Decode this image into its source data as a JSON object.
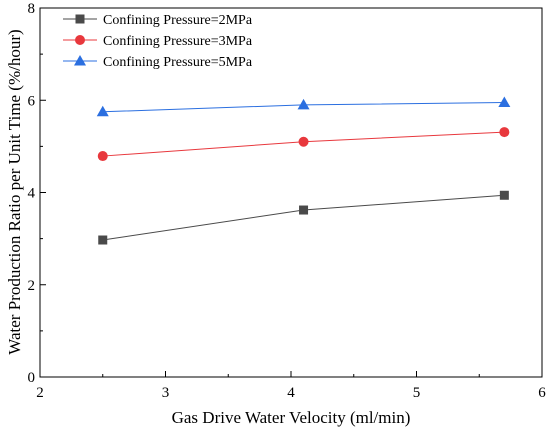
{
  "chart_data": {
    "type": "line",
    "xlabel": "Gas Drive Water Velocity (ml/min)",
    "ylabel": "Water Production Ratio per Unit Time (%/hour)",
    "xlim": [
      2,
      6
    ],
    "ylim": [
      0,
      8
    ],
    "xticks": [
      2,
      3,
      4,
      5,
      6
    ],
    "yticks": [
      0,
      2,
      4,
      6,
      8
    ],
    "grid": false,
    "legend_position": "top-left",
    "x": [
      2.5,
      4.1,
      5.7
    ],
    "series": [
      {
        "name": "Confining Pressure=2MPa",
        "values": [
          2.97,
          3.62,
          3.94
        ],
        "color": "#4a4a4a",
        "marker": "square"
      },
      {
        "name": "Confining Pressure=3MPa",
        "values": [
          4.79,
          5.1,
          5.31
        ],
        "color": "#e8383d",
        "marker": "circle"
      },
      {
        "name": "Confining Pressure=5MPa",
        "values": [
          5.75,
          5.9,
          5.95
        ],
        "color": "#2b6fe0",
        "marker": "triangle"
      }
    ]
  }
}
